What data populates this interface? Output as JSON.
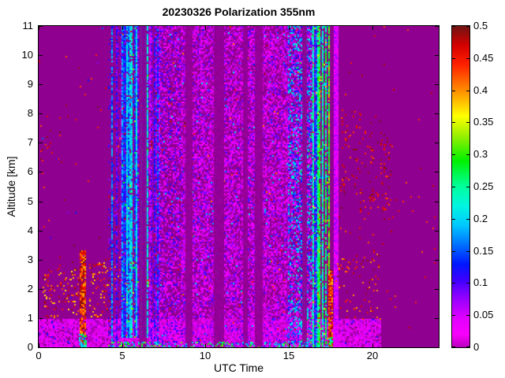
{
  "window": {
    "background": "#FFFFFF"
  },
  "chart_data": {
    "type": "heatmap",
    "title": "20230326 Polarization 355nm",
    "xlabel": "UTC Time",
    "ylabel": "Altitude [km]",
    "x_range": [
      0,
      24
    ],
    "y_range": [
      0,
      11
    ],
    "x_ticks": [
      0,
      5,
      10,
      15,
      20
    ],
    "x_tick_labels": [
      "0",
      "5",
      "10",
      "15",
      "20"
    ],
    "y_ticks": [
      0,
      1,
      2,
      3,
      4,
      5,
      6,
      7,
      8,
      9,
      10,
      11
    ],
    "y_tick_labels": [
      "0",
      "1",
      "2",
      "3",
      "4",
      "5",
      "6",
      "7",
      "8",
      "9",
      "10",
      "11"
    ],
    "grid": false,
    "colorbar": {
      "range": [
        0,
        0.5
      ],
      "ticks": [
        0,
        0.05,
        0.1,
        0.15,
        0.2,
        0.25,
        0.3,
        0.35,
        0.4,
        0.45,
        0.5
      ],
      "tick_labels": [
        "0",
        "0.05",
        "0.1",
        "0.15",
        "0.2",
        "0.25",
        "0.3",
        "0.35",
        "0.4",
        "0.45",
        "0.5"
      ],
      "position": "right"
    },
    "background_value_color": "#8F0090",
    "colormap_stops": [
      [
        0.0,
        "#B800BC"
      ],
      [
        0.02,
        "#F800FC"
      ],
      [
        0.045,
        "#E100FF"
      ],
      [
        0.075,
        "#9900FF"
      ],
      [
        0.105,
        "#3C00FF"
      ],
      [
        0.13,
        "#0018FF"
      ],
      [
        0.16,
        "#0072FF"
      ],
      [
        0.19,
        "#00C8FF"
      ],
      [
        0.22,
        "#00F5E1"
      ],
      [
        0.25,
        "#00FF9E"
      ],
      [
        0.29,
        "#00F000"
      ],
      [
        0.33,
        "#9CF000"
      ],
      [
        0.36,
        "#FFFF00"
      ],
      [
        0.4,
        "#FF8C00"
      ],
      [
        0.44,
        "#FF2000"
      ],
      [
        0.47,
        "#D40000"
      ],
      [
        0.5,
        "#701414"
      ]
    ],
    "seed": 987654,
    "description": "Lidar depolarization time-height plot: clean magenta (~0) background before 04:20 and after ~18:00 UTC; noisy low-depol speckle 04:20-17:30; bright blue/cyan stripe bands at ~04:20-07:10 and ~16:30-17:30; pink noise band below ~1 km until ~20:30; brown aerosol speckle 1-3 km before 05:00 UTC; dark-red cirrus speckle 4.5-8.5 km at 18-21 UTC.",
    "regions": [
      {
        "name": "left-clear-sparse-red",
        "type": "speckle",
        "utc": [
          0,
          4.2
        ],
        "alt": [
          0,
          11
        ],
        "density": 0.004,
        "v": [
          0.42,
          0.5
        ]
      },
      {
        "name": "left-clear-blue-dots",
        "type": "speckle",
        "utc": [
          0,
          4.2
        ],
        "alt": [
          0,
          11
        ],
        "density": 0.0012,
        "v": [
          0.08,
          0.16
        ]
      },
      {
        "name": "left-highalt-cluster",
        "type": "speckle",
        "utc": [
          0.1,
          1.4
        ],
        "alt": [
          6.3,
          7.9
        ],
        "density": 0.04,
        "v": [
          0.42,
          0.5
        ]
      },
      {
        "name": "bottom-noise-band",
        "type": "speckle",
        "utc": [
          0,
          20.5
        ],
        "alt": [
          0,
          0.95
        ],
        "density": 0.85,
        "v": [
          0.0,
          0.055
        ],
        "power": 1.3
      },
      {
        "name": "bottom-band-blue-dots",
        "type": "speckle",
        "utc": [
          0,
          20.5
        ],
        "alt": [
          0,
          0.95
        ],
        "density": 0.05,
        "v": [
          0.06,
          0.13
        ]
      },
      {
        "name": "aerosol-left-1",
        "type": "speckle",
        "utc": [
          0.25,
          2.35
        ],
        "alt": [
          1.0,
          2.7
        ],
        "density": 0.13,
        "v": [
          0.36,
          0.5
        ]
      },
      {
        "name": "aerosol-left-1b",
        "type": "speckle",
        "utc": [
          0.5,
          2.0
        ],
        "alt": [
          2.3,
          3.1
        ],
        "density": 0.05,
        "v": [
          0.36,
          0.5
        ]
      },
      {
        "name": "aerosol-left-2",
        "type": "speckle",
        "utc": [
          3.05,
          4.7
        ],
        "alt": [
          0.9,
          3.0
        ],
        "density": 0.13,
        "v": [
          0.36,
          0.5
        ]
      },
      {
        "name": "aerosol-under-stripes",
        "type": "speckle",
        "utc": [
          4.2,
          6.6
        ],
        "alt": [
          2.0,
          3.3
        ],
        "density": 0.05,
        "v": [
          0.36,
          0.5
        ]
      },
      {
        "name": "dark-streak-0230",
        "type": "speckle",
        "utc": [
          2.5,
          2.75
        ],
        "alt": [
          0,
          3.3
        ],
        "density": 0.85,
        "v": [
          0.38,
          0.5
        ]
      },
      {
        "name": "dark-streak-0230-base",
        "type": "speckle",
        "utc": [
          2.45,
          2.8
        ],
        "alt": [
          0,
          0.45
        ],
        "density": 0.6,
        "v": [
          0.14,
          0.3
        ]
      },
      {
        "name": "stripes-early",
        "type": "stripes",
        "utc": [
          4.2,
          5.0
        ],
        "alt": [
          0,
          11
        ],
        "colProb": 0.3,
        "v": [
          0.07,
          0.2
        ],
        "fill": 0.85
      },
      {
        "name": "stripes-dense",
        "type": "stripes",
        "utc": [
          5.0,
          6.55
        ],
        "alt": [
          0.35,
          11
        ],
        "colProb": 0.82,
        "v": [
          0.08,
          0.24
        ],
        "fill": 0.9
      },
      {
        "name": "stripes-dense-greens",
        "type": "speckle",
        "utc": [
          5.0,
          6.55
        ],
        "alt": [
          0.35,
          11
        ],
        "density": 0.02,
        "v": [
          0.25,
          0.35
        ]
      },
      {
        "name": "stripes-thinning",
        "type": "stripes",
        "utc": [
          6.55,
          7.2
        ],
        "alt": [
          0,
          11
        ],
        "colProb": 0.5,
        "v": [
          0.05,
          0.16
        ],
        "fill": 0.75
      },
      {
        "name": "noise-moderate",
        "type": "speckle",
        "utc": [
          7.2,
          8.6
        ],
        "alt": [
          0,
          11
        ],
        "density": 0.5,
        "v": [
          0,
          0.12
        ],
        "power": 1.4
      },
      {
        "name": "noise-main",
        "type": "speckle",
        "utc": [
          8.6,
          15.0
        ],
        "alt": [
          0,
          11
        ],
        "density": 0.62,
        "v": [
          0,
          0.105
        ],
        "power": 1.9
      },
      {
        "name": "noise-cyan-sparse",
        "type": "speckle",
        "utc": [
          7.2,
          15.0
        ],
        "alt": [
          0,
          11
        ],
        "density": 0.012,
        "v": [
          0.13,
          0.22
        ]
      },
      {
        "name": "noise-transition",
        "type": "speckle",
        "utc": [
          15.0,
          16.45
        ],
        "alt": [
          0,
          11
        ],
        "density": 0.7,
        "v": [
          0,
          0.24
        ],
        "power": 1.5
      },
      {
        "name": "transition-cyan",
        "type": "speckle",
        "utc": [
          15.5,
          16.45
        ],
        "alt": [
          0,
          11
        ],
        "density": 0.05,
        "v": [
          0.15,
          0.3
        ]
      },
      {
        "name": "noise-red-sparse",
        "type": "speckle",
        "utc": [
          4.2,
          17.4
        ],
        "alt": [
          0,
          11
        ],
        "density": 0.006,
        "v": [
          0.4,
          0.5
        ]
      },
      {
        "name": "stripes-bright",
        "type": "stripes",
        "utc": [
          16.45,
          17.4
        ],
        "alt": [
          0,
          11
        ],
        "colProb": 0.85,
        "v": [
          0.1,
          0.3
        ],
        "fill": 0.92
      },
      {
        "name": "bright-band-hot-dots",
        "type": "speckle",
        "utc": [
          16.45,
          17.4
        ],
        "alt": [
          0,
          11
        ],
        "density": 0.03,
        "v": [
          0.3,
          0.45
        ]
      }
    ],
    "gap_columns": [
      {
        "name": "gap-0615",
        "utc": [
          6.05,
          6.45
        ]
      },
      {
        "name": "gap-0900",
        "utc": [
          8.85,
          9.2
        ]
      },
      {
        "name": "gap-1045",
        "utc": [
          10.55,
          11.1
        ]
      },
      {
        "name": "gap-1220",
        "utc": [
          12.3,
          12.5
        ]
      },
      {
        "name": "gap-1310",
        "utc": [
          13.0,
          13.4
        ]
      },
      {
        "name": "gap-1555",
        "utc": [
          15.85,
          16.05
        ]
      }
    ],
    "overlay_regions": [
      {
        "name": "dark-streak-1730",
        "type": "speckle",
        "utc": [
          17.42,
          17.62
        ],
        "alt": [
          0,
          2.65
        ],
        "density": 0.8,
        "v": [
          0.38,
          0.5
        ]
      },
      {
        "name": "dark-streak-1730-base",
        "type": "speckle",
        "utc": [
          17.4,
          17.65
        ],
        "alt": [
          0,
          0.4
        ],
        "density": 0.6,
        "v": [
          0.15,
          0.32
        ]
      },
      {
        "name": "bright-magenta-line",
        "type": "stripes",
        "utc": [
          17.75,
          17.95
        ],
        "alt": [
          0,
          11
        ],
        "colProb": 1.0,
        "v": [
          0.03,
          0.05
        ],
        "fill": 1.0
      },
      {
        "name": "bottom-edge-greens",
        "type": "speckle",
        "utc": [
          4.2,
          17.6
        ],
        "alt": [
          0,
          0.18
        ],
        "density": 0.3,
        "v": [
          0.14,
          0.33
        ]
      },
      {
        "name": "cirrus-sparse",
        "type": "speckle",
        "utc": [
          17.9,
          21.5
        ],
        "alt": [
          3.0,
          9.0
        ],
        "density": 0.008,
        "v": [
          0.42,
          0.5
        ]
      },
      {
        "name": "cirrus-cluster-1",
        "type": "speckle",
        "utc": [
          18.1,
          19.3
        ],
        "alt": [
          5.2,
          8.3
        ],
        "density": 0.05,
        "v": [
          0.42,
          0.5
        ]
      },
      {
        "name": "cirrus-cluster-2",
        "type": "speckle",
        "utc": [
          19.3,
          20.5
        ],
        "alt": [
          4.6,
          7.4
        ],
        "density": 0.07,
        "v": [
          0.42,
          0.5
        ]
      },
      {
        "name": "cirrus-cluster-3",
        "type": "speckle",
        "utc": [
          20.5,
          21.15
        ],
        "alt": [
          4.4,
          7.6
        ],
        "density": 0.12,
        "v": [
          0.42,
          0.5
        ]
      },
      {
        "name": "right-lowalt-speckle",
        "type": "speckle",
        "utc": [
          17.8,
          20.5
        ],
        "alt": [
          0.95,
          3.3
        ],
        "density": 0.05,
        "v": [
          0.38,
          0.5
        ]
      },
      {
        "name": "right-clear-sparse-red",
        "type": "speckle",
        "utc": [
          17.95,
          23.9
        ],
        "alt": [
          0,
          11
        ],
        "density": 0.004,
        "v": [
          0.42,
          0.5
        ]
      }
    ]
  }
}
